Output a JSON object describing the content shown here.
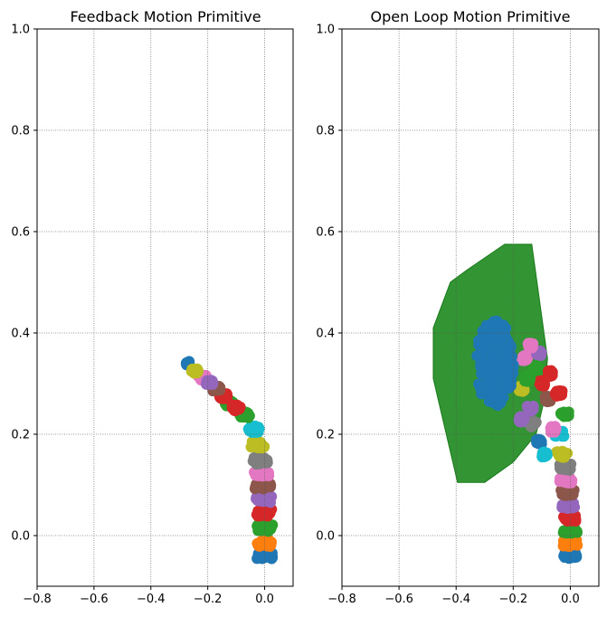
{
  "chart_data": [
    {
      "type": "scatter",
      "title": "Feedback Motion Primitive",
      "xlabel": "",
      "ylabel": "",
      "xlim": [
        -0.8,
        0.1
      ],
      "ylim": [
        -0.1,
        1.0
      ],
      "xticks": [
        -0.8,
        -0.6,
        -0.4,
        -0.2,
        0.0
      ],
      "xtick_labels": [
        "−0.8",
        "−0.6",
        "−0.4",
        "−0.2",
        "0.0"
      ],
      "yticks": [
        0.0,
        0.2,
        0.4,
        0.6,
        0.8,
        1.0
      ],
      "ytick_labels": [
        "0.0",
        "0.2",
        "0.4",
        "0.6",
        "0.8",
        "1.0"
      ],
      "grid": true,
      "grid_style": "dotted",
      "centerline": [
        [
          0.01,
          -0.04
        ],
        [
          0.01,
          0.0
        ],
        [
          0.01,
          0.05
        ],
        [
          0.005,
          0.1
        ],
        [
          0.0,
          0.14
        ],
        [
          -0.01,
          0.18
        ],
        [
          -0.02,
          0.21
        ],
        [
          -0.045,
          0.25
        ],
        [
          -0.075,
          0.28
        ],
        [
          -0.11,
          0.3
        ],
        [
          -0.15,
          0.315
        ],
        [
          -0.19,
          0.325
        ],
        [
          -0.23,
          0.335
        ],
        [
          -0.27,
          0.34
        ]
      ],
      "series": [
        {
          "color": "#1f77b4",
          "blobs": [
            [
              0.0,
              -0.04,
              0.055,
              0.012
            ],
            [
              -0.27,
              0.34,
              0.012,
              0.008
            ]
          ]
        },
        {
          "color": "#ff7f0e",
          "blobs": [
            [
              0.0,
              -0.015,
              0.055,
              0.013
            ]
          ]
        },
        {
          "color": "#2ca02c",
          "blobs": [
            [
              0.0,
              0.015,
              0.056,
              0.014
            ],
            [
              -0.125,
              0.262,
              0.03,
              0.012
            ]
          ]
        },
        {
          "color": "#d62728",
          "blobs": [
            [
              0.0,
              0.045,
              0.056,
              0.014
            ],
            [
              -0.145,
              0.275,
              0.03,
              0.011
            ]
          ]
        },
        {
          "color": "#9467bd",
          "blobs": [
            [
              -0.003,
              0.072,
              0.056,
              0.014
            ]
          ]
        },
        {
          "color": "#8c564b",
          "blobs": [
            [
              -0.006,
              0.098,
              0.056,
              0.014
            ],
            [
              -0.17,
              0.29,
              0.028,
              0.01
            ]
          ]
        },
        {
          "color": "#e377c2",
          "blobs": [
            [
              -0.01,
              0.122,
              0.054,
              0.014
            ],
            [
              -0.22,
              0.312,
              0.03,
              0.01
            ]
          ]
        },
        {
          "color": "#7f7f7f",
          "blobs": [
            [
              -0.015,
              0.148,
              0.052,
              0.014
            ]
          ]
        },
        {
          "color": "#bcbd22",
          "blobs": [
            [
              -0.025,
              0.18,
              0.05,
              0.015
            ],
            [
              -0.245,
              0.325,
              0.025,
              0.009
            ]
          ]
        },
        {
          "color": "#17becf",
          "blobs": [
            [
              -0.04,
              0.21,
              0.045,
              0.013
            ]
          ]
        },
        {
          "color": "#2ca02c",
          "blobs": [
            [
              -0.07,
              0.238,
              0.035,
              0.012
            ]
          ]
        },
        {
          "color": "#d62728",
          "blobs": [
            [
              -0.1,
              0.252,
              0.03,
              0.012
            ]
          ]
        },
        {
          "color": "#9467bd",
          "blobs": [
            [
              -0.195,
              0.303,
              0.028,
              0.01
            ]
          ]
        }
      ]
    },
    {
      "type": "scatter",
      "title": "Open Loop Motion Primitive",
      "xlabel": "",
      "ylabel": "",
      "xlim": [
        -0.8,
        0.1
      ],
      "ylim": [
        -0.1,
        1.0
      ],
      "xticks": [
        -0.8,
        -0.6,
        -0.4,
        -0.2,
        0.0
      ],
      "xtick_labels": [
        "−0.8",
        "−0.6",
        "−0.4",
        "−0.2",
        "0.0"
      ],
      "yticks": [
        0.0,
        0.2,
        0.4,
        0.6,
        0.8,
        1.0
      ],
      "ytick_labels": [
        "0.0",
        "0.2",
        "0.4",
        "0.6",
        "0.8",
        "1.0"
      ],
      "grid": true,
      "grid_style": "dotted",
      "reach_polygon": {
        "color": "#228b22",
        "opacity": 0.92,
        "points": [
          [
            -0.48,
            0.41
          ],
          [
            -0.42,
            0.5
          ],
          [
            -0.36,
            0.525
          ],
          [
            -0.23,
            0.575
          ],
          [
            -0.135,
            0.575
          ],
          [
            -0.08,
            0.35
          ],
          [
            -0.09,
            0.27
          ],
          [
            -0.12,
            0.2
          ],
          [
            -0.2,
            0.145
          ],
          [
            -0.3,
            0.105
          ],
          [
            -0.395,
            0.105
          ],
          [
            -0.48,
            0.31
          ]
        ]
      },
      "central_blob": {
        "color": "#1f77b4",
        "cx": -0.265,
        "cy": 0.34,
        "rx": 0.075,
        "ry": 0.095
      },
      "series": [
        {
          "color": "#1f77b4",
          "blobs": [
            [
              0.0,
              -0.04,
              0.05,
              0.012
            ],
            [
              -0.11,
              0.185,
              0.02,
              0.01
            ]
          ]
        },
        {
          "color": "#ff7f0e",
          "blobs": [
            [
              0.0,
              -0.015,
              0.05,
              0.013
            ]
          ]
        },
        {
          "color": "#2ca02c",
          "blobs": [
            [
              0.0,
              0.01,
              0.05,
              0.013
            ],
            [
              -0.12,
              0.33,
              0.02,
              0.012
            ]
          ]
        },
        {
          "color": "#d62728",
          "blobs": [
            [
              0.0,
              0.035,
              0.05,
              0.013
            ],
            [
              -0.1,
              0.3,
              0.02,
              0.012
            ]
          ]
        },
        {
          "color": "#9467bd",
          "blobs": [
            [
              -0.005,
              0.06,
              0.05,
              0.013
            ],
            [
              -0.14,
              0.25,
              0.022,
              0.012
            ]
          ]
        },
        {
          "color": "#8c564b",
          "blobs": [
            [
              -0.01,
              0.085,
              0.05,
              0.013
            ],
            [
              -0.08,
              0.27,
              0.02,
              0.012
            ]
          ]
        },
        {
          "color": "#e377c2",
          "blobs": [
            [
              -0.015,
              0.11,
              0.045,
              0.013
            ],
            [
              -0.16,
              0.35,
              0.02,
              0.012
            ]
          ]
        },
        {
          "color": "#7f7f7f",
          "blobs": [
            [
              -0.02,
              0.135,
              0.045,
              0.013
            ],
            [
              -0.13,
              0.22,
              0.022,
              0.012
            ]
          ]
        },
        {
          "color": "#bcbd22",
          "blobs": [
            [
              -0.03,
              0.16,
              0.04,
              0.013
            ],
            [
              -0.17,
              0.29,
              0.02,
              0.012
            ]
          ]
        },
        {
          "color": "#17becf",
          "blobs": [
            [
              -0.04,
              0.2,
              0.035,
              0.012
            ],
            [
              -0.09,
              0.16,
              0.02,
              0.01
            ]
          ]
        },
        {
          "color": "#2ca02c",
          "blobs": [
            [
              -0.02,
              0.24,
              0.03,
              0.012
            ],
            [
              -0.15,
              0.31,
              0.02,
              0.012
            ]
          ]
        },
        {
          "color": "#d62728",
          "blobs": [
            [
              -0.04,
              0.28,
              0.025,
              0.012
            ],
            [
              -0.07,
              0.32,
              0.018,
              0.012
            ]
          ]
        },
        {
          "color": "#9467bd",
          "blobs": [
            [
              -0.11,
              0.36,
              0.018,
              0.01
            ],
            [
              -0.17,
              0.23,
              0.02,
              0.012
            ]
          ]
        },
        {
          "color": "#e377c2",
          "blobs": [
            [
              -0.14,
              0.375,
              0.018,
              0.01
            ],
            [
              -0.06,
              0.21,
              0.02,
              0.012
            ]
          ]
        }
      ]
    }
  ]
}
